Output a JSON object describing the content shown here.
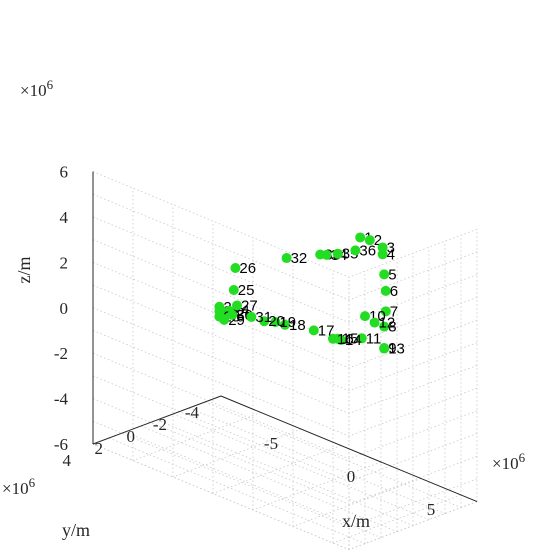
{
  "chart_data": {
    "type": "scatter3d",
    "xlabel": "x/m",
    "ylabel": "y/m",
    "zlabel": "z/m",
    "x_exponent": "×10^6",
    "y_exponent": "×10^6",
    "z_exponent": "×10^6",
    "xlim": [
      -8,
      8
    ],
    "ylim": [
      -4,
      4
    ],
    "zlim": [
      -6,
      6
    ],
    "x_ticks": [
      -5,
      0,
      5
    ],
    "y_ticks": [
      -4,
      -2,
      0,
      2,
      4
    ],
    "z_ticks": [
      -6,
      -4,
      -2,
      0,
      2,
      4,
      6
    ],
    "grid": true,
    "marker_color": "#22dd22",
    "points": [
      {
        "label": "1",
        "x": 5.0,
        "y": 0.3,
        "z": 5.9
      },
      {
        "label": "2",
        "x": 5.5,
        "y": 0.2,
        "z": 5.9
      },
      {
        "label": "3",
        "x": 6.1,
        "y": 0.0,
        "z": 5.7
      },
      {
        "label": "4",
        "x": 6.1,
        "y": 0.0,
        "z": 5.4
      },
      {
        "label": "5",
        "x": 6.3,
        "y": 0.1,
        "z": 4.6
      },
      {
        "label": "6",
        "x": 6.4,
        "y": 0.1,
        "z": 3.9
      },
      {
        "label": "7",
        "x": 6.4,
        "y": 0.1,
        "z": 3.0
      },
      {
        "label": "8",
        "x": 6.3,
        "y": 0.1,
        "z": 2.3
      },
      {
        "label": "9",
        "x": 6.2,
        "y": 0.0,
        "z": 1.3
      },
      {
        "label": "10",
        "x": 4.0,
        "y": -1.0,
        "z": 1.8
      },
      {
        "label": "11",
        "x": 3.5,
        "y": -1.3,
        "z": 0.6
      },
      {
        "label": "12",
        "x": 3.0,
        "y": -2.6,
        "z": 0.8
      },
      {
        "label": "13",
        "x": 3.0,
        "y": -3.2,
        "z": -0.5
      },
      {
        "label": "14",
        "x": 0.5,
        "y": -3.0,
        "z": -0.8
      },
      {
        "label": "15",
        "x": 0.3,
        "y": -3.0,
        "z": -0.8
      },
      {
        "label": "16",
        "x": -0.2,
        "y": -3.2,
        "z": -1.0
      },
      {
        "label": "17",
        "x": -1.8,
        "y": -3.6,
        "z": -1.2
      },
      {
        "label": "18",
        "x": -3.1,
        "y": -3.1,
        "z": -1.2
      },
      {
        "label": "19",
        "x": -3.6,
        "y": -3.0,
        "z": -1.2
      },
      {
        "label": "20",
        "x": -4.0,
        "y": -2.7,
        "z": -1.2
      },
      {
        "label": "21",
        "x": -5.6,
        "y": -1.5,
        "z": -0.9
      },
      {
        "label": "22",
        "x": -5.3,
        "y": -1.5,
        "z": -0.9
      },
      {
        "label": "23",
        "x": -5.4,
        "y": -1.3,
        "z": -0.6
      },
      {
        "label": "24",
        "x": -4.8,
        "y": -1.3,
        "z": -0.6
      },
      {
        "label": "25",
        "x": -4.5,
        "y": -1.3,
        "z": 0.4
      },
      {
        "label": "26",
        "x": -4.4,
        "y": -1.3,
        "z": 1.4
      },
      {
        "label": "27",
        "x": -3.0,
        "y": 0.0,
        "z": 0.5
      },
      {
        "label": "28",
        "x": -3.0,
        "y": 1.1,
        "z": 0.3
      },
      {
        "label": "29",
        "x": -2.6,
        "y": 1.2,
        "z": 0.3
      },
      {
        "label": "30",
        "x": -1.5,
        "y": 1.8,
        "z": 1.0
      },
      {
        "label": "31",
        "x": -0.4,
        "y": 1.7,
        "z": 1.2
      },
      {
        "label": "32",
        "x": 1.2,
        "y": 1.1,
        "z": 4.1
      },
      {
        "label": "33",
        "x": 3.0,
        "y": 0.8,
        "z": 4.7
      },
      {
        "label": "34",
        "x": 3.4,
        "y": 0.8,
        "z": 4.8
      },
      {
        "label": "35",
        "x": 4.0,
        "y": 0.7,
        "z": 5.0
      },
      {
        "label": "36",
        "x": 4.8,
        "y": 0.4,
        "z": 5.3
      }
    ]
  }
}
